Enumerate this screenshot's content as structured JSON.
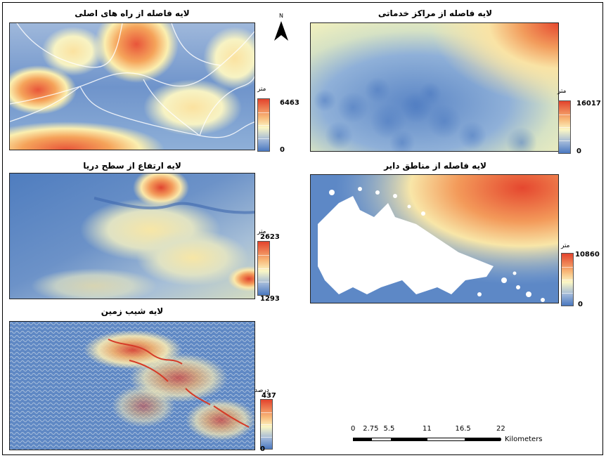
{
  "north_arrow": {
    "label": "N",
    "icon": "north-arrow-icon"
  },
  "panels": [
    {
      "id": "roads",
      "title": "لایه فاصله از راه های اصلی",
      "unit": "متر",
      "max": "6463",
      "min": "0"
    },
    {
      "id": "service",
      "title": "لایه فاصله از مراکز خدماتی",
      "unit": "متر",
      "max": "16017",
      "min": "0"
    },
    {
      "id": "elevation",
      "title": "لایه ارتفاع از سطح دریا",
      "unit": "متر",
      "max": "2623",
      "min": "1293"
    },
    {
      "id": "settlements",
      "title": "لایه فاصله از مناطق دایر",
      "unit": "متر",
      "max": "10860",
      "min": "0"
    },
    {
      "id": "slope",
      "title": "لایه شیب زمین",
      "unit": "درصد",
      "max": "437",
      "min": "0"
    }
  ],
  "scale_bar": {
    "ticks": [
      "0",
      "2.75",
      "5.5",
      "11",
      "16.5",
      "22"
    ],
    "tick_values": [
      0,
      2.75,
      5.5,
      11,
      16.5,
      22
    ],
    "units": "Kilometers"
  },
  "colors": {
    "low": "#4a78c0",
    "mid": "#fbf7c5",
    "high": "#e3432d",
    "frame": "#000000"
  }
}
